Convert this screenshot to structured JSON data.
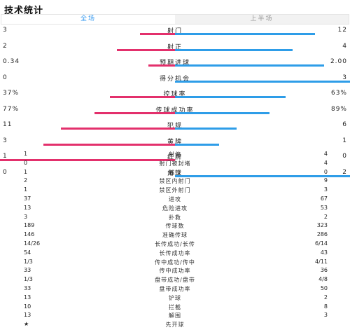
{
  "title": "技术统计",
  "tabs": {
    "full_match": "全场",
    "first_half": "上半场"
  },
  "colors": {
    "home": "#e3306c",
    "away": "#2e9de8",
    "active_tab": "#3a9bf0"
  },
  "bar_stats": [
    {
      "label": "射门",
      "home": "3",
      "away": "12",
      "home_share": 0.2,
      "away_share": 0.8
    },
    {
      "label": "射正",
      "home": "2",
      "away": "4",
      "home_share": 0.33,
      "away_share": 0.67
    },
    {
      "label": "预期进球",
      "home": "0.34",
      "away": "2.00",
      "home_share": 0.15,
      "away_share": 0.85
    },
    {
      "label": "得分机会",
      "home": "0",
      "away": "3",
      "home_share": 0.0,
      "away_share": 1.0
    },
    {
      "label": "控球率",
      "home": "37%",
      "away": "63%",
      "home_share": 0.37,
      "away_share": 0.63
    },
    {
      "label": "传球成功率",
      "home": "77%",
      "away": "89%",
      "home_share": 0.46,
      "away_share": 0.54
    },
    {
      "label": "犯规",
      "home": "11",
      "away": "6",
      "home_share": 0.65,
      "away_share": 0.35
    },
    {
      "label": "黄牌",
      "home": "3",
      "away": "1",
      "home_share": 0.75,
      "away_share": 0.25
    },
    {
      "label": "红牌",
      "home": "1",
      "away": "0",
      "home_share": 1.0,
      "away_share": 0.0
    },
    {
      "label": "角球",
      "home": "0",
      "away": "2",
      "home_share": 0.0,
      "away_share": 1.0
    }
  ],
  "list_stats": [
    {
      "label": "射偏",
      "home": "1",
      "away": "4"
    },
    {
      "label": "射门被封堵",
      "home": "0",
      "away": "4"
    },
    {
      "label": "越位",
      "home": "1",
      "away": "0"
    },
    {
      "label": "禁区内射门",
      "home": "2",
      "away": "9"
    },
    {
      "label": "禁区外射门",
      "home": "1",
      "away": "3"
    },
    {
      "label": "进攻",
      "home": "37",
      "away": "67"
    },
    {
      "label": "危险进攻",
      "home": "13",
      "away": "53"
    },
    {
      "label": "扑救",
      "home": "3",
      "away": "2"
    },
    {
      "label": "传球数",
      "home": "189",
      "away": "323"
    },
    {
      "label": "准确传球",
      "home": "146",
      "away": "286"
    },
    {
      "label": "长传成功/长传",
      "home": "14/26",
      "away": "6/14"
    },
    {
      "label": "长传成功率",
      "home": "54",
      "away": "43"
    },
    {
      "label": "传中成功/传中",
      "home": "1/3",
      "away": "4/11"
    },
    {
      "label": "传中成功率",
      "home": "33",
      "away": "36"
    },
    {
      "label": "盘带成功/盘带",
      "home": "1/3",
      "away": "4/8"
    },
    {
      "label": "盘带成功率",
      "home": "33",
      "away": "50"
    },
    {
      "label": "铲球",
      "home": "13",
      "away": "2"
    },
    {
      "label": "拦截",
      "home": "10",
      "away": "8"
    },
    {
      "label": "解围",
      "home": "13",
      "away": "3"
    },
    {
      "label": "先开球",
      "home": "★",
      "away": ""
    }
  ]
}
